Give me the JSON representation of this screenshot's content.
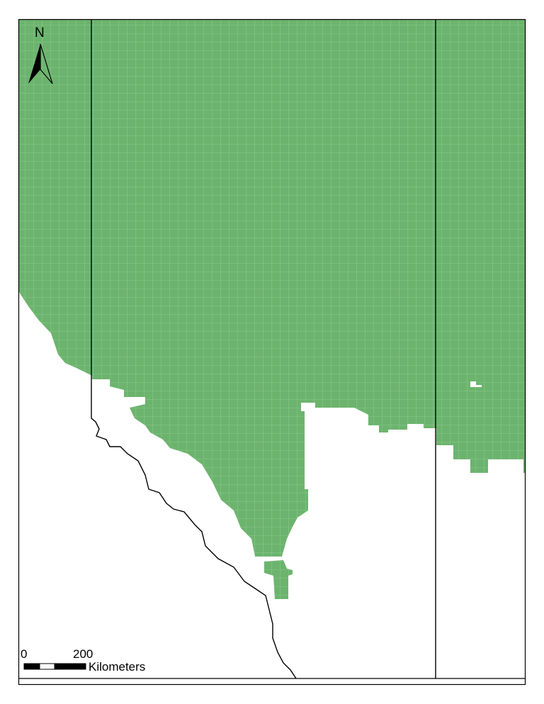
{
  "map": {
    "north_label": "N",
    "scale": {
      "start_label": "0",
      "end_label": "200",
      "unit_label": "Kilometers"
    },
    "colors": {
      "fill": "#6cb46e",
      "grid": "#93cf92",
      "boundary": "#000000",
      "background": "#ffffff"
    },
    "icons": [
      "north-arrow-icon",
      "scale-bar"
    ]
  }
}
